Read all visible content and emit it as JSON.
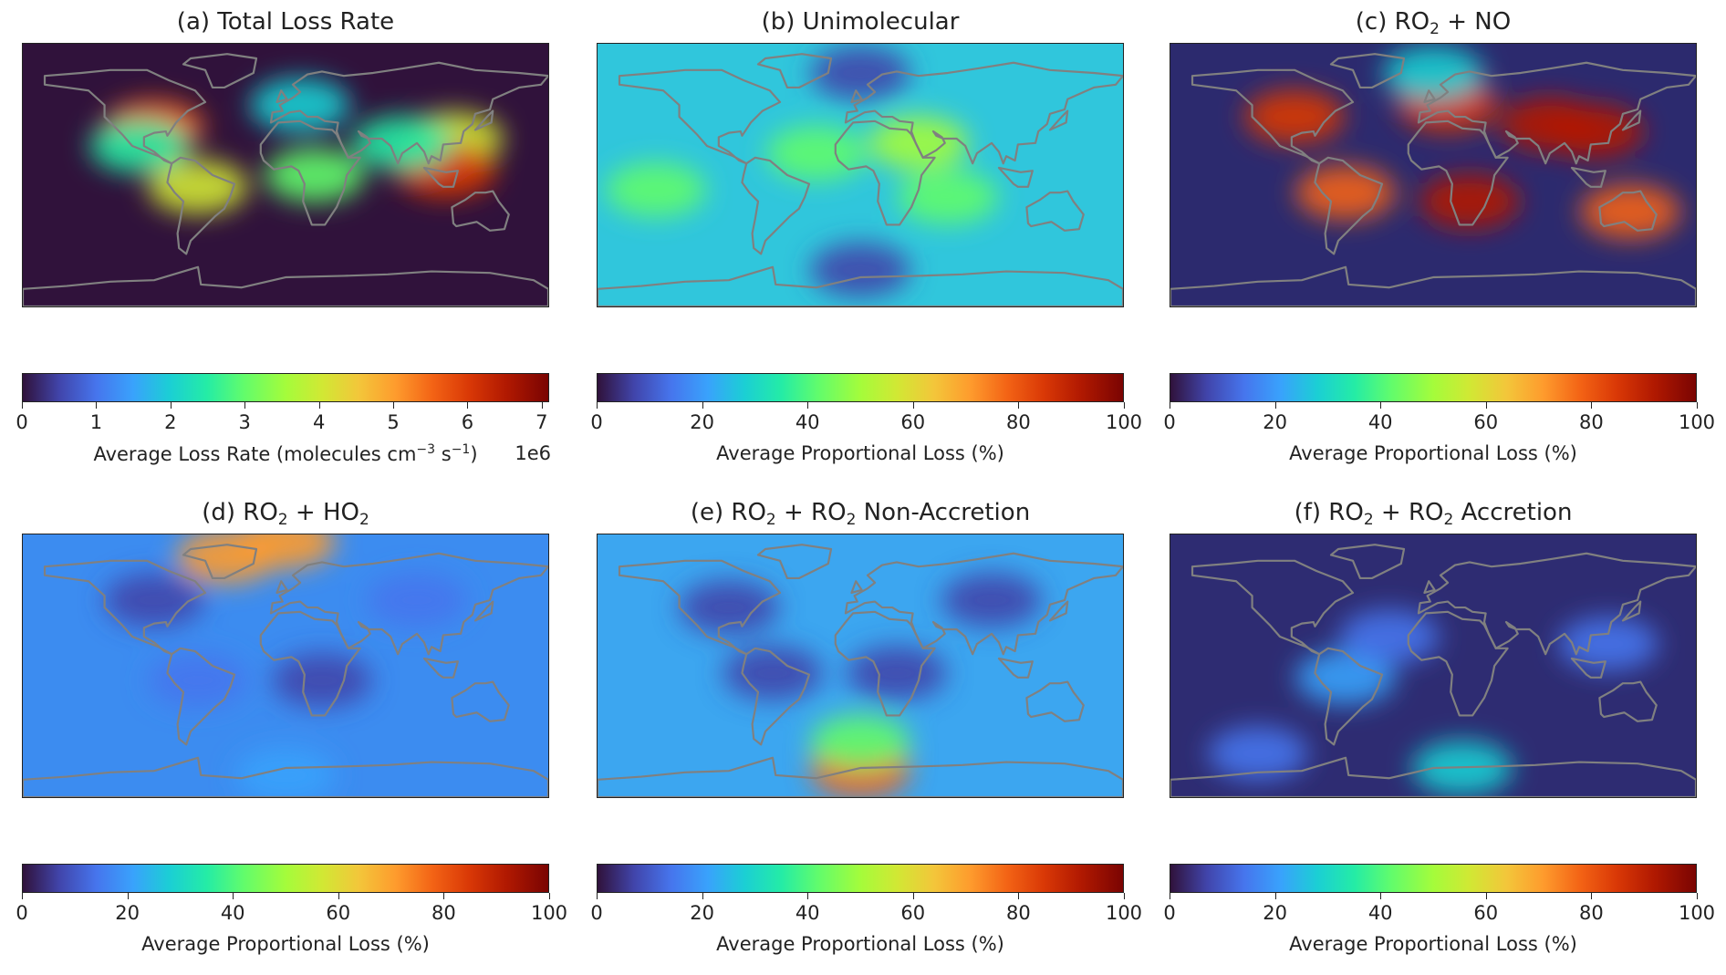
{
  "figure": {
    "panels": [
      {
        "id": "a",
        "title": "(a) Total Loss Rate",
        "title_html": "(a) Total Loss Rate",
        "background": "#30123b",
        "blobs": [
          {
            "lon": -90,
            "lat": 33,
            "v": 0.75
          },
          {
            "lon": -100,
            "lat": 20,
            "v": 0.35
          },
          {
            "lon": -60,
            "lat": -8,
            "v": 0.55
          },
          {
            "lon": 20,
            "lat": 0,
            "v": 0.45
          },
          {
            "lon": 115,
            "lat": 25,
            "v": 0.6
          },
          {
            "lon": 110,
            "lat": 3,
            "v": 0.85
          },
          {
            "lon": 80,
            "lat": 22,
            "v": 0.35
          },
          {
            "lon": 10,
            "lat": 48,
            "v": 0.25
          }
        ],
        "colorbar": {
          "ticks": [
            "0",
            "1",
            "2",
            "3",
            "4",
            "5",
            "6",
            "7"
          ],
          "max": 7.1,
          "label_html": "Average Loss Rate (molecules cm<sup>−3</sup> s<sup>−1</sup>)",
          "exponent": "1e6"
        }
      },
      {
        "id": "b",
        "title": "(b) Unimolecular",
        "title_html": "(b) Unimolecular",
        "background": "#30c6dc",
        "blobs": [
          {
            "lon": -30,
            "lat": 15,
            "v": 0.45
          },
          {
            "lon": 60,
            "lat": -15,
            "v": 0.42
          },
          {
            "lon": -140,
            "lat": -10,
            "v": 0.42
          },
          {
            "lon": 40,
            "lat": 22,
            "v": 0.5
          },
          {
            "lon": 0,
            "lat": -65,
            "v": 0.05
          },
          {
            "lon": 0,
            "lat": 70,
            "v": 0.08
          }
        ],
        "colorbar": {
          "ticks": [
            "0",
            "20",
            "40",
            "60",
            "80",
            "100"
          ],
          "max": 100,
          "label_html": "Average Proportional Loss (%)",
          "exponent": ""
        }
      },
      {
        "id": "c",
        "title": "RO2 + NO",
        "title_html": "(c) RO<sub>2</sub> + NO",
        "background": "#2c2a6e",
        "blobs": [
          {
            "lon": -95,
            "lat": 40,
            "v": 0.85
          },
          {
            "lon": 10,
            "lat": 48,
            "v": 0.85
          },
          {
            "lon": 80,
            "lat": 35,
            "v": 0.9
          },
          {
            "lon": 110,
            "lat": 30,
            "v": 0.9
          },
          {
            "lon": -60,
            "lat": -12,
            "v": 0.8
          },
          {
            "lon": 25,
            "lat": -18,
            "v": 0.9
          },
          {
            "lon": 135,
            "lat": -25,
            "v": 0.8
          },
          {
            "lon": 0,
            "lat": 70,
            "v": 0.25
          }
        ],
        "colorbar": {
          "ticks": [
            "0",
            "20",
            "40",
            "60",
            "80",
            "100"
          ],
          "max": 100,
          "label_html": "Average Proportional Loss (%)",
          "exponent": ""
        }
      },
      {
        "id": "d",
        "title": "RO2 + HO2",
        "title_html": "(d) RO<sub>2</sub> + HO<sub>2</sub>",
        "background": "#3c8cf0",
        "blobs": [
          {
            "lon": -40,
            "lat": 75,
            "v": 0.72
          },
          {
            "lon": 0,
            "lat": 85,
            "v": 0.7
          },
          {
            "lon": -90,
            "lat": 45,
            "v": 0.1
          },
          {
            "lon": 90,
            "lat": 45,
            "v": 0.12
          },
          {
            "lon": 25,
            "lat": -10,
            "v": 0.08
          },
          {
            "lon": -60,
            "lat": -10,
            "v": 0.15
          },
          {
            "lon": 0,
            "lat": -75,
            "v": 0.18
          }
        ],
        "colorbar": {
          "ticks": [
            "0",
            "20",
            "40",
            "60",
            "80",
            "100"
          ],
          "max": 100,
          "label_html": "Average Proportional Loss (%)",
          "exponent": ""
        }
      },
      {
        "id": "e",
        "title": "RO2 + RO2 Non-Accretion",
        "title_html": "(e) RO<sub>2</sub> + RO<sub>2</sub> Non-Accretion",
        "background": "#3ca6f0",
        "blobs": [
          {
            "lon": 0,
            "lat": -72,
            "v": 0.82
          },
          {
            "lon": 0,
            "lat": -52,
            "v": 0.45
          },
          {
            "lon": -90,
            "lat": 40,
            "v": 0.05
          },
          {
            "lon": 90,
            "lat": 45,
            "v": 0.05
          },
          {
            "lon": 25,
            "lat": -5,
            "v": 0.06
          },
          {
            "lon": -60,
            "lat": -5,
            "v": 0.08
          }
        ],
        "colorbar": {
          "ticks": [
            "0",
            "20",
            "40",
            "60",
            "80",
            "100"
          ],
          "max": 100,
          "label_html": "Average Proportional Loss (%)",
          "exponent": ""
        }
      },
      {
        "id": "f",
        "title": "RO2 + RO2 Accretion",
        "title_html": "(f) RO<sub>2</sub> + RO<sub>2</sub> Accretion",
        "background": "#2e2c72",
        "blobs": [
          {
            "lon": -60,
            "lat": -8,
            "v": 0.22
          },
          {
            "lon": 20,
            "lat": -70,
            "v": 0.3
          },
          {
            "lon": -120,
            "lat": -60,
            "v": 0.12
          },
          {
            "lon": 120,
            "lat": 15,
            "v": 0.14
          },
          {
            "lon": -30,
            "lat": 20,
            "v": 0.12
          }
        ],
        "colorbar": {
          "ticks": [
            "0",
            "20",
            "40",
            "60",
            "80",
            "100"
          ],
          "max": 100,
          "label_html": "Average Proportional Loss (%)",
          "exponent": ""
        }
      }
    ],
    "colormap": "turbo",
    "coastline_color": "#808080"
  }
}
